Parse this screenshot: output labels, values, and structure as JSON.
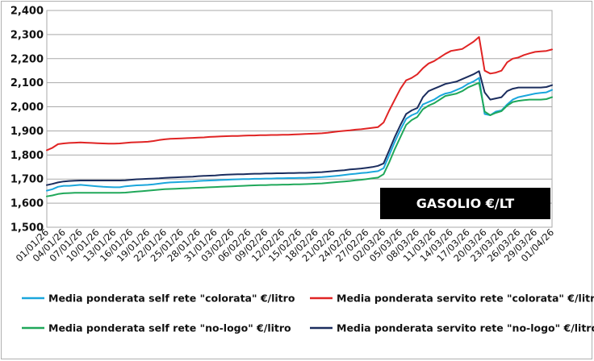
{
  "chart_data": {
    "type": "line",
    "title": "",
    "xlabel": "",
    "ylabel": "",
    "ylim": [
      1.5,
      2.4
    ],
    "y_ticks": [
      "1,500",
      "1,600",
      "1,700",
      "1,800",
      "1,900",
      "2,000",
      "2,100",
      "2,200",
      "2,300",
      "2,400"
    ],
    "grid": "horizontal",
    "legend_position": "bottom",
    "annotation": "GASOLIO €/LT",
    "x_tick_labels": [
      "01/01/26",
      "04/01/26",
      "07/01/26",
      "10/01/26",
      "13/01/26",
      "16/01/26",
      "19/01/26",
      "22/01/26",
      "25/01/26",
      "28/01/26",
      "31/01/26",
      "03/02/26",
      "06/02/26",
      "09/02/26",
      "12/02/26",
      "15/02/26",
      "18/02/26",
      "21/02/26",
      "24/02/26",
      "27/02/26",
      "02/03/26",
      "05/03/26",
      "08/03/26",
      "11/03/26",
      "14/03/26",
      "17/03/26",
      "20/03/26",
      "23/03/26",
      "26/03/26",
      "29/03/26",
      "01/04/26"
    ],
    "x_tick_days": [
      0,
      3,
      6,
      9,
      12,
      15,
      18,
      21,
      24,
      27,
      30,
      33,
      36,
      39,
      42,
      45,
      48,
      51,
      54,
      57,
      60,
      63,
      66,
      69,
      72,
      75,
      78,
      81,
      84,
      87,
      90
    ],
    "x_days_max": 90,
    "series": [
      {
        "name": "Media ponderata self rete \"colorata\" €/litro",
        "color": "#1aa6dc",
        "x": [
          0,
          1,
          2,
          3,
          4,
          5,
          6,
          7,
          8,
          9,
          10,
          11,
          12,
          13,
          14,
          15,
          16,
          17,
          18,
          19,
          20,
          21,
          22,
          23,
          24,
          25,
          26,
          27,
          28,
          29,
          30,
          31,
          32,
          33,
          34,
          35,
          36,
          37,
          38,
          39,
          40,
          41,
          42,
          43,
          44,
          45,
          46,
          47,
          48,
          49,
          50,
          51,
          52,
          53,
          54,
          55,
          56,
          57,
          58,
          59,
          60,
          61,
          62,
          63,
          64,
          65,
          66,
          67,
          68,
          69,
          70,
          71,
          72,
          73,
          74,
          75,
          76,
          77,
          78,
          79,
          80,
          81,
          82,
          83,
          84,
          85,
          86,
          87,
          88,
          89,
          90
        ],
        "values": [
          1.652,
          1.658,
          1.668,
          1.672,
          1.672,
          1.674,
          1.676,
          1.674,
          1.672,
          1.67,
          1.668,
          1.667,
          1.666,
          1.666,
          1.67,
          1.672,
          1.674,
          1.675,
          1.676,
          1.678,
          1.681,
          1.684,
          1.686,
          1.687,
          1.688,
          1.689,
          1.69,
          1.692,
          1.693,
          1.694,
          1.695,
          1.696,
          1.697,
          1.698,
          1.699,
          1.7,
          1.7,
          1.701,
          1.701,
          1.702,
          1.702,
          1.703,
          1.703,
          1.704,
          1.704,
          1.705,
          1.705,
          1.706,
          1.707,
          1.708,
          1.71,
          1.712,
          1.714,
          1.717,
          1.72,
          1.722,
          1.725,
          1.727,
          1.73,
          1.733,
          1.745,
          1.8,
          1.855,
          1.905,
          1.95,
          1.965,
          1.975,
          2.01,
          2.02,
          2.03,
          2.045,
          2.055,
          2.06,
          2.07,
          2.08,
          2.095,
          2.105,
          2.12,
          1.97,
          1.965,
          1.98,
          1.985,
          2.01,
          2.03,
          2.04,
          2.045,
          2.05,
          2.055,
          2.058,
          2.06,
          2.07
        ]
      },
      {
        "name": "Media ponderata servito rete \"colorata\" €/litro",
        "color": "#e02424",
        "x": [
          0,
          1,
          2,
          3,
          4,
          5,
          6,
          7,
          8,
          9,
          10,
          11,
          12,
          13,
          14,
          15,
          16,
          17,
          18,
          19,
          20,
          21,
          22,
          23,
          24,
          25,
          26,
          27,
          28,
          29,
          30,
          31,
          32,
          33,
          34,
          35,
          36,
          37,
          38,
          39,
          40,
          41,
          42,
          43,
          44,
          45,
          46,
          47,
          48,
          49,
          50,
          51,
          52,
          53,
          54,
          55,
          56,
          57,
          58,
          59,
          60,
          61,
          62,
          63,
          64,
          65,
          66,
          67,
          68,
          69,
          70,
          71,
          72,
          73,
          74,
          75,
          76,
          77,
          78,
          79,
          80,
          81,
          82,
          83,
          84,
          85,
          86,
          87,
          88,
          89,
          90
        ],
        "values": [
          1.82,
          1.83,
          1.845,
          1.848,
          1.85,
          1.851,
          1.852,
          1.851,
          1.85,
          1.849,
          1.848,
          1.847,
          1.847,
          1.848,
          1.85,
          1.852,
          1.853,
          1.854,
          1.855,
          1.858,
          1.862,
          1.865,
          1.867,
          1.868,
          1.869,
          1.87,
          1.871,
          1.872,
          1.873,
          1.875,
          1.876,
          1.877,
          1.878,
          1.879,
          1.879,
          1.88,
          1.881,
          1.881,
          1.882,
          1.882,
          1.883,
          1.883,
          1.884,
          1.884,
          1.885,
          1.886,
          1.887,
          1.888,
          1.889,
          1.89,
          1.892,
          1.895,
          1.898,
          1.9,
          1.902,
          1.905,
          1.907,
          1.91,
          1.913,
          1.916,
          1.935,
          1.985,
          2.03,
          2.075,
          2.11,
          2.12,
          2.135,
          2.16,
          2.18,
          2.19,
          2.205,
          2.22,
          2.232,
          2.236,
          2.24,
          2.255,
          2.27,
          2.29,
          2.15,
          2.138,
          2.142,
          2.15,
          2.185,
          2.2,
          2.205,
          2.215,
          2.222,
          2.228,
          2.23,
          2.232,
          2.238
        ]
      },
      {
        "name": "Media ponderata self rete \"no-logo\" €/litro",
        "color": "#20a85a",
        "x": [
          0,
          1,
          2,
          3,
          4,
          5,
          6,
          7,
          8,
          9,
          10,
          11,
          12,
          13,
          14,
          15,
          16,
          17,
          18,
          19,
          20,
          21,
          22,
          23,
          24,
          25,
          26,
          27,
          28,
          29,
          30,
          31,
          32,
          33,
          34,
          35,
          36,
          37,
          38,
          39,
          40,
          41,
          42,
          43,
          44,
          45,
          46,
          47,
          48,
          49,
          50,
          51,
          52,
          53,
          54,
          55,
          56,
          57,
          58,
          59,
          60,
          61,
          62,
          63,
          64,
          65,
          66,
          67,
          68,
          69,
          70,
          71,
          72,
          73,
          74,
          75,
          76,
          77,
          78,
          79,
          80,
          81,
          82,
          83,
          84,
          85,
          86,
          87,
          88,
          89,
          90
        ],
        "values": [
          1.628,
          1.632,
          1.638,
          1.641,
          1.642,
          1.643,
          1.643,
          1.643,
          1.643,
          1.643,
          1.643,
          1.643,
          1.643,
          1.643,
          1.644,
          1.646,
          1.648,
          1.65,
          1.652,
          1.654,
          1.656,
          1.658,
          1.659,
          1.66,
          1.661,
          1.662,
          1.663,
          1.664,
          1.665,
          1.666,
          1.667,
          1.668,
          1.669,
          1.67,
          1.671,
          1.672,
          1.673,
          1.674,
          1.675,
          1.675,
          1.676,
          1.676,
          1.677,
          1.677,
          1.678,
          1.678,
          1.679,
          1.68,
          1.681,
          1.682,
          1.684,
          1.686,
          1.688,
          1.69,
          1.692,
          1.695,
          1.697,
          1.7,
          1.703,
          1.706,
          1.72,
          1.77,
          1.825,
          1.875,
          1.925,
          1.945,
          1.958,
          1.99,
          2.005,
          2.015,
          2.03,
          2.045,
          2.05,
          2.055,
          2.065,
          2.08,
          2.09,
          2.1,
          1.98,
          1.965,
          1.975,
          1.982,
          2.005,
          2.02,
          2.025,
          2.028,
          2.03,
          2.03,
          2.03,
          2.032,
          2.04
        ]
      },
      {
        "name": "Media ponderata servito rete \"no-logo\" €/litro",
        "color": "#1b2d5e",
        "x": [
          0,
          1,
          2,
          3,
          4,
          5,
          6,
          7,
          8,
          9,
          10,
          11,
          12,
          13,
          14,
          15,
          16,
          17,
          18,
          19,
          20,
          21,
          22,
          23,
          24,
          25,
          26,
          27,
          28,
          29,
          30,
          31,
          32,
          33,
          34,
          35,
          36,
          37,
          38,
          39,
          40,
          41,
          42,
          43,
          44,
          45,
          46,
          47,
          48,
          49,
          50,
          51,
          52,
          53,
          54,
          55,
          56,
          57,
          58,
          59,
          60,
          61,
          62,
          63,
          64,
          65,
          66,
          67,
          68,
          69,
          70,
          71,
          72,
          73,
          74,
          75,
          76,
          77,
          78,
          79,
          80,
          81,
          82,
          83,
          84,
          85,
          86,
          87,
          88,
          89,
          90
        ],
        "values": [
          1.675,
          1.68,
          1.686,
          1.69,
          1.692,
          1.693,
          1.694,
          1.694,
          1.694,
          1.694,
          1.694,
          1.694,
          1.694,
          1.694,
          1.695,
          1.697,
          1.699,
          1.7,
          1.701,
          1.702,
          1.703,
          1.705,
          1.706,
          1.707,
          1.708,
          1.709,
          1.71,
          1.712,
          1.713,
          1.714,
          1.715,
          1.717,
          1.718,
          1.719,
          1.72,
          1.72,
          1.721,
          1.722,
          1.722,
          1.723,
          1.723,
          1.724,
          1.724,
          1.725,
          1.725,
          1.726,
          1.726,
          1.727,
          1.728,
          1.729,
          1.731,
          1.733,
          1.735,
          1.737,
          1.74,
          1.742,
          1.744,
          1.747,
          1.75,
          1.755,
          1.765,
          1.82,
          1.875,
          1.925,
          1.97,
          1.985,
          1.995,
          2.04,
          2.065,
          2.075,
          2.085,
          2.095,
          2.1,
          2.105,
          2.115,
          2.125,
          2.135,
          2.148,
          2.06,
          2.03,
          2.035,
          2.04,
          2.065,
          2.075,
          2.08,
          2.08,
          2.08,
          2.08,
          2.08,
          2.082,
          2.09
        ]
      }
    ]
  }
}
